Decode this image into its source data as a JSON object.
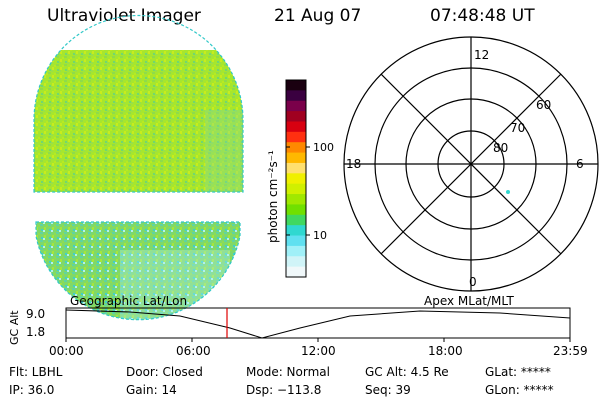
{
  "header": {
    "title": "Ultraviolet Imager",
    "date": "21 Aug 07",
    "time": "07:48:48 UT"
  },
  "colorbar": {
    "unit_label": "photon cm⁻²s⁻¹",
    "tick_labels": [
      "100",
      "10"
    ],
    "colors": [
      "#1a0010",
      "#3a0040",
      "#7a004a",
      "#a00020",
      "#d80010",
      "#ff3010",
      "#ff8800",
      "#ffb800",
      "#ffe070",
      "#f0f000",
      "#d0f000",
      "#a0e800",
      "#70e000",
      "#40d860",
      "#30d8d0",
      "#60e0f0",
      "#a0f0f8",
      "#d0f4f8",
      "#f0f8fa"
    ]
  },
  "polar_plot": {
    "mlt_labels": {
      "top": "12",
      "left": "18",
      "right": "6",
      "bottom": "0"
    },
    "lat_labels": [
      "60",
      "70",
      "80"
    ],
    "spot_color": "#30d8d0"
  },
  "timeline": {
    "left_label": "Geographic Lat/Lon",
    "right_label": "Apex MLat/MLT",
    "y_axis_label": "GC Alt",
    "y_ticks": [
      "9.0",
      "1.8"
    ],
    "x_ticks": [
      "00:00",
      "06:00",
      "12:00",
      "18:00",
      "23:59"
    ],
    "marker_color": "#e00000"
  },
  "status": {
    "row1": [
      "Flt: LBHL",
      "Door: Closed",
      "Mode: Normal",
      "GC Alt: 4.5 Re",
      "GLat: *****"
    ],
    "row2": [
      "IP: 36.0",
      "Gain: 14",
      "Dsp: −113.8",
      "Seq: 39",
      "GLon: *****"
    ]
  }
}
